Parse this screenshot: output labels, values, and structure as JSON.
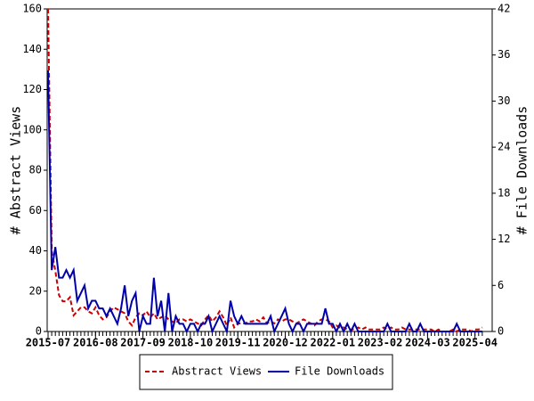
{
  "chart_data": {
    "type": "line",
    "x": [
      "2015-07",
      "2015-08",
      "2015-09",
      "2015-10",
      "2015-11",
      "2015-12",
      "2016-01",
      "2016-02",
      "2016-03",
      "2016-04",
      "2016-05",
      "2016-06",
      "2016-07",
      "2016-08",
      "2016-09",
      "2016-10",
      "2016-11",
      "2016-12",
      "2017-01",
      "2017-02",
      "2017-03",
      "2017-04",
      "2017-05",
      "2017-06",
      "2017-07",
      "2017-08",
      "2017-09",
      "2017-10",
      "2017-11",
      "2017-12",
      "2018-01",
      "2018-02",
      "2018-03",
      "2018-04",
      "2018-05",
      "2018-06",
      "2018-07",
      "2018-08",
      "2018-09",
      "2018-10",
      "2018-11",
      "2018-12",
      "2019-01",
      "2019-02",
      "2019-03",
      "2019-04",
      "2019-05",
      "2019-06",
      "2019-07",
      "2019-08",
      "2019-09",
      "2019-10",
      "2019-11",
      "2019-12",
      "2020-01",
      "2020-02",
      "2020-03",
      "2020-04",
      "2020-05",
      "2020-06",
      "2020-07",
      "2020-08",
      "2020-09",
      "2020-10",
      "2020-11",
      "2020-12",
      "2021-01",
      "2021-02",
      "2021-03",
      "2021-04",
      "2021-05",
      "2021-06",
      "2021-07",
      "2021-08",
      "2021-09",
      "2021-10",
      "2021-11",
      "2021-12",
      "2022-01",
      "2022-02",
      "2022-03",
      "2022-04",
      "2022-05",
      "2022-06",
      "2022-07",
      "2022-08",
      "2022-09",
      "2022-10",
      "2022-11",
      "2022-12",
      "2023-01",
      "2023-02",
      "2023-03",
      "2023-04",
      "2023-05",
      "2023-06",
      "2023-07",
      "2023-08",
      "2023-09",
      "2023-10",
      "2023-11",
      "2023-12",
      "2024-01",
      "2024-02",
      "2024-03",
      "2024-04",
      "2024-05",
      "2024-06",
      "2024-07",
      "2024-08",
      "2024-09",
      "2024-10",
      "2024-11",
      "2024-12",
      "2025-01",
      "2025-02",
      "2025-03",
      "2025-04",
      "2025-05",
      "2025-06"
    ],
    "xticks": [
      "2015-07",
      "2016-08",
      "2017-09",
      "2018-10",
      "2019-11",
      "2020-12",
      "2022-01",
      "2023-02",
      "2024-03",
      "2025-04"
    ],
    "ylabel": "# Abstract Views",
    "y2label": "# File Downloads",
    "ylim": [
      0,
      160
    ],
    "yticks": [
      0,
      20,
      40,
      60,
      80,
      100,
      120,
      140,
      160
    ],
    "y2lim": [
      0,
      42
    ],
    "y2ticks": [
      0,
      6,
      12,
      18,
      24,
      30,
      36,
      42
    ],
    "legend": "bottom",
    "series": [
      {
        "name": "Abstract Views",
        "color": "#cc0000",
        "dashed": true,
        "values": [
          160,
          40,
          30,
          18,
          15,
          15,
          17,
          8,
          10,
          12,
          12,
          10,
          9,
          12,
          8,
          6,
          7,
          10,
          12,
          11,
          10,
          9,
          5,
          3,
          7,
          9,
          8,
          10,
          7,
          9,
          6,
          7,
          8,
          6,
          5,
          4,
          6,
          6,
          5,
          6,
          5,
          4,
          3,
          6,
          8,
          5,
          7,
          10,
          7,
          3,
          7,
          2,
          4,
          4,
          4,
          5,
          5,
          6,
          5,
          7,
          4,
          5,
          4,
          6,
          5,
          6,
          6,
          5,
          4,
          5,
          6,
          5,
          4,
          3,
          5,
          6,
          6,
          5,
          2,
          3,
          2,
          2,
          1,
          1,
          1,
          2,
          1,
          2,
          1,
          1,
          1,
          1,
          2,
          1,
          2,
          1,
          1,
          2,
          1,
          1,
          1,
          1,
          1,
          1,
          1,
          1,
          0,
          1,
          0,
          0,
          0,
          1,
          0,
          1,
          1,
          1,
          0,
          1,
          1,
          2
        ]
      },
      {
        "name": "File Downloads",
        "color": "#0000aa",
        "axis": "y2",
        "values": [
          34,
          8,
          11,
          7,
          7,
          8,
          7,
          8,
          4,
          5,
          6,
          3,
          4,
          4,
          3,
          3,
          2,
          3,
          2,
          1,
          3,
          6,
          2,
          4,
          5,
          0,
          2,
          1,
          1,
          7,
          2,
          4,
          0,
          5,
          0,
          2,
          1,
          1,
          0,
          1,
          1,
          0,
          1,
          1,
          2,
          0,
          1,
          2,
          1,
          0,
          4,
          2,
          1,
          2,
          1,
          1,
          1,
          1,
          1,
          1,
          1,
          2,
          0,
          1,
          2,
          3,
          1,
          0,
          1,
          1,
          0,
          1,
          1,
          1,
          1,
          1,
          3,
          1,
          1,
          0,
          1,
          0,
          1,
          0,
          1,
          0,
          0,
          0,
          0,
          0,
          0,
          0,
          0,
          1,
          0,
          0,
          0,
          0,
          0,
          1,
          0,
          0,
          1,
          0,
          0,
          0,
          0,
          0,
          0,
          0,
          0,
          0,
          1,
          0,
          0,
          0,
          0,
          0,
          0,
          0
        ]
      }
    ]
  }
}
